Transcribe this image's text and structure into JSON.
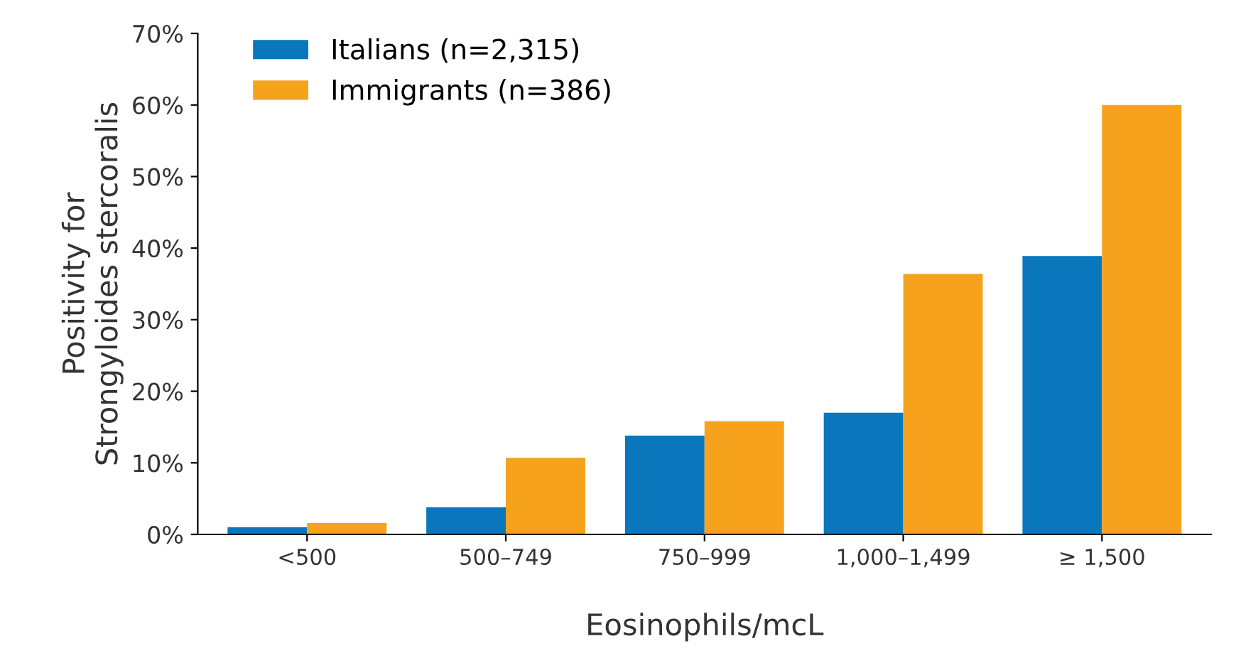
{
  "chart_data": {
    "type": "bar",
    "xlabel": "Eosinophils/mcL",
    "ylabel": "Positivity for\nStrongyloides stercoralis",
    "categories": [
      "<500",
      "500–749",
      "750–999",
      "1,000–1,499",
      "≥ 1,500"
    ],
    "series": [
      {
        "name": "Italians (n=2,315)",
        "color": "#0a76bb",
        "values": [
          1,
          3.8,
          13.8,
          17,
          38.9
        ]
      },
      {
        "name": "Immigrants (n=386)",
        "color": "#f6a21d",
        "values": [
          1.6,
          10.7,
          15.8,
          36.4,
          60
        ]
      }
    ],
    "ylim": [
      0,
      70
    ],
    "yticks": [
      {
        "value": 0,
        "label": "0%"
      },
      {
        "value": 10,
        "label": "10%"
      },
      {
        "value": 20,
        "label": "20%"
      },
      {
        "value": 30,
        "label": "30%"
      },
      {
        "value": 40,
        "label": "40%"
      },
      {
        "value": 50,
        "label": "50%"
      },
      {
        "value": 60,
        "label": "60%"
      },
      {
        "value": 70,
        "label": "70%"
      }
    ],
    "grid": false,
    "legend": "top left"
  }
}
